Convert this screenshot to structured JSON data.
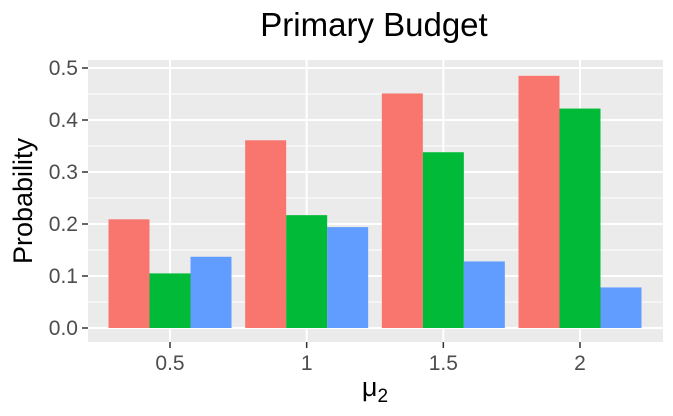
{
  "chart_data": {
    "type": "bar",
    "title": "Primary Budget",
    "xlabel": "μ",
    "xlabel_subscript": "2",
    "ylabel": "Probability",
    "categories": [
      "0.5",
      "1",
      "1.5",
      "2"
    ],
    "series": [
      {
        "color": "#F8766D",
        "values": [
          0.209,
          0.361,
          0.451,
          0.485
        ]
      },
      {
        "color": "#00BA38",
        "values": [
          0.105,
          0.217,
          0.338,
          0.422
        ]
      },
      {
        "color": "#619CFF",
        "values": [
          0.137,
          0.194,
          0.128,
          0.078
        ]
      }
    ],
    "ylim": [
      0,
      0.5
    ],
    "yticks": [
      0.0,
      0.1,
      0.2,
      0.3,
      0.4,
      0.5
    ],
    "ytick_labels": [
      "0.0",
      "0.1",
      "0.2",
      "0.3",
      "0.4",
      "0.5"
    ],
    "grid": true,
    "panel_background": "#EBEBEB",
    "legend": "none"
  }
}
